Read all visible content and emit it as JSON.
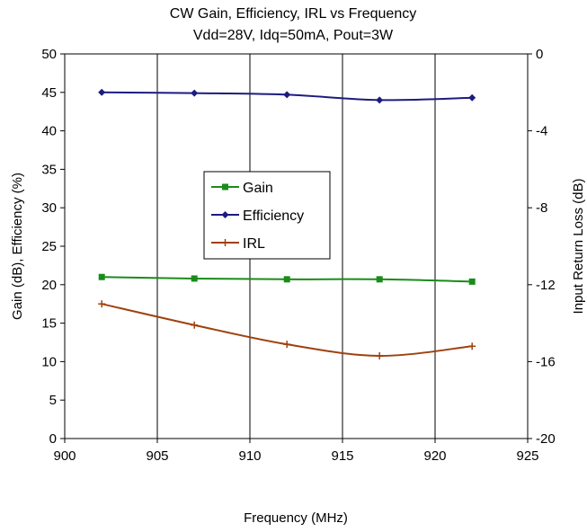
{
  "chart_data": {
    "type": "line",
    "title_line1": "CW Gain, Efficiency, IRL vs Frequency",
    "title_line2": "Vdd=28V, Idq=50mA, Pout=3W",
    "xlabel": "Frequency (MHz)",
    "ylabel": "Gain (dB), Efficiency (%)",
    "y2label": "Input Return Loss (dB)",
    "xlim": [
      900,
      925
    ],
    "ylim": [
      0,
      50
    ],
    "y2lim": [
      -20,
      0
    ],
    "x_ticks": [
      "900",
      "905",
      "910",
      "915",
      "920",
      "925"
    ],
    "y_ticks": [
      "0",
      "5",
      "10",
      "15",
      "20",
      "25",
      "30",
      "35",
      "40",
      "45",
      "50"
    ],
    "y2_ticks": [
      "-20",
      "-16",
      "-12",
      "-8",
      "-4",
      "0"
    ],
    "grid": "vertical",
    "legend_placement": "center-left",
    "x": [
      902,
      907,
      912,
      917,
      922
    ],
    "series": [
      {
        "name": "Gain",
        "axis": "left",
        "color": "#1a8c1a",
        "marker": "square",
        "values": [
          21.0,
          20.8,
          20.7,
          20.7,
          20.4
        ]
      },
      {
        "name": "Efficiency",
        "axis": "left",
        "color": "#1c1c80",
        "marker": "diamond",
        "values": [
          45.0,
          44.9,
          44.7,
          44.0,
          44.3
        ]
      },
      {
        "name": "IRL",
        "axis": "right",
        "color": "#a0400c",
        "marker": "plus",
        "values": [
          -13.0,
          -14.1,
          -15.1,
          -15.7,
          -15.2
        ]
      }
    ]
  }
}
